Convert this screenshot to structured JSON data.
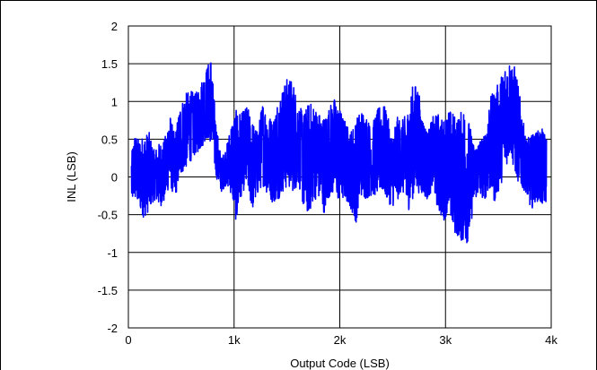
{
  "chart_data": {
    "type": "line",
    "title": "",
    "xlabel": "Output Code (LSB)",
    "ylabel": "INL (LSB)",
    "xlim": [
      0,
      4096
    ],
    "ylim": [
      -2,
      2
    ],
    "grid": true,
    "legend": "none",
    "x_ticks": [
      {
        "value": 0,
        "label": "0"
      },
      {
        "value": 1024,
        "label": "1k"
      },
      {
        "value": 2048,
        "label": "2k"
      },
      {
        "value": 3072,
        "label": "3k"
      },
      {
        "value": 4096,
        "label": "4k"
      }
    ],
    "y_ticks": [
      {
        "value": -2,
        "label": "-2"
      },
      {
        "value": -1.5,
        "label": "-1.5"
      },
      {
        "value": -1,
        "label": "-1"
      },
      {
        "value": -0.5,
        "label": "-0.5"
      },
      {
        "value": 0,
        "label": "0"
      },
      {
        "value": 0.5,
        "label": "0.5"
      },
      {
        "value": 1,
        "label": "1"
      },
      {
        "value": 1.5,
        "label": "1.5"
      },
      {
        "value": 2,
        "label": "2"
      }
    ],
    "series": [
      {
        "color": "#0000ff",
        "envelope": {
          "x": [
            30,
            60,
            100,
            150,
            200,
            250,
            300,
            350,
            400,
            450,
            500,
            550,
            600,
            650,
            700,
            750,
            800,
            850,
            900,
            950,
            1000,
            1050,
            1100,
            1150,
            1200,
            1250,
            1300,
            1350,
            1400,
            1450,
            1500,
            1550,
            1600,
            1650,
            1700,
            1750,
            1800,
            1850,
            1900,
            1950,
            2000,
            2050,
            2100,
            2150,
            2200,
            2250,
            2300,
            2350,
            2400,
            2450,
            2500,
            2550,
            2600,
            2650,
            2700,
            2750,
            2800,
            2850,
            2900,
            2950,
            3000,
            3050,
            3100,
            3150,
            3200,
            3250,
            3300,
            3350,
            3400,
            3450,
            3500,
            3550,
            3600,
            3650,
            3700,
            3750,
            3800,
            3850,
            3900,
            3950,
            4000,
            4050
          ],
          "upper": [
            0.3,
            0.58,
            0.5,
            0.55,
            0.6,
            0.35,
            0.45,
            0.5,
            0.85,
            0.55,
            0.95,
            1.1,
            1.15,
            1.1,
            1.25,
            1.42,
            1.6,
            0.7,
            0.25,
            0.4,
            0.75,
            0.9,
            0.85,
            0.95,
            0.75,
            0.6,
            1.0,
            0.85,
            0.75,
            1.05,
            1.2,
            1.35,
            1.25,
            0.95,
            0.85,
            1.0,
            0.95,
            0.85,
            0.8,
            0.95,
            1.05,
            0.9,
            0.75,
            0.6,
            0.75,
            0.9,
            0.85,
            0.65,
            0.85,
            1.0,
            0.9,
            0.55,
            0.8,
            0.75,
            0.85,
            1.2,
            1.25,
            0.8,
            0.6,
            0.8,
            0.85,
            0.75,
            0.9,
            0.85,
            0.8,
            0.95,
            0.75,
            0.4,
            0.5,
            0.55,
            1.05,
            1.15,
            1.3,
            1.5,
            1.55,
            1.45,
            1.0,
            0.5,
            0.55,
            0.6,
            0.65,
            0.55
          ],
          "lower": [
            -0.35,
            -0.3,
            -0.4,
            -0.55,
            -0.45,
            -0.3,
            -0.4,
            -0.35,
            -0.1,
            -0.3,
            0.0,
            0.1,
            0.2,
            0.3,
            0.35,
            0.5,
            0.45,
            0.0,
            -0.2,
            -0.1,
            -0.25,
            -0.65,
            -0.2,
            -0.15,
            -0.45,
            -0.25,
            -0.1,
            -0.25,
            -0.35,
            -0.3,
            -0.2,
            -0.15,
            -0.2,
            -0.1,
            -0.45,
            -0.5,
            -0.3,
            -0.3,
            -0.5,
            -0.25,
            -0.25,
            -0.35,
            -0.3,
            -0.4,
            -0.65,
            -0.25,
            -0.3,
            -0.25,
            -0.25,
            -0.2,
            -0.3,
            -0.4,
            -0.35,
            -0.15,
            -0.5,
            -0.3,
            -0.2,
            -0.25,
            -0.3,
            -0.15,
            -0.45,
            -0.6,
            -0.45,
            -0.75,
            -0.8,
            -0.92,
            -0.85,
            -0.3,
            -0.25,
            -0.3,
            -0.2,
            -0.35,
            -0.15,
            0.1,
            0.3,
            0.0,
            -0.15,
            -0.2,
            -0.45,
            -0.3,
            -0.4,
            -0.35
          ]
        }
      }
    ]
  }
}
